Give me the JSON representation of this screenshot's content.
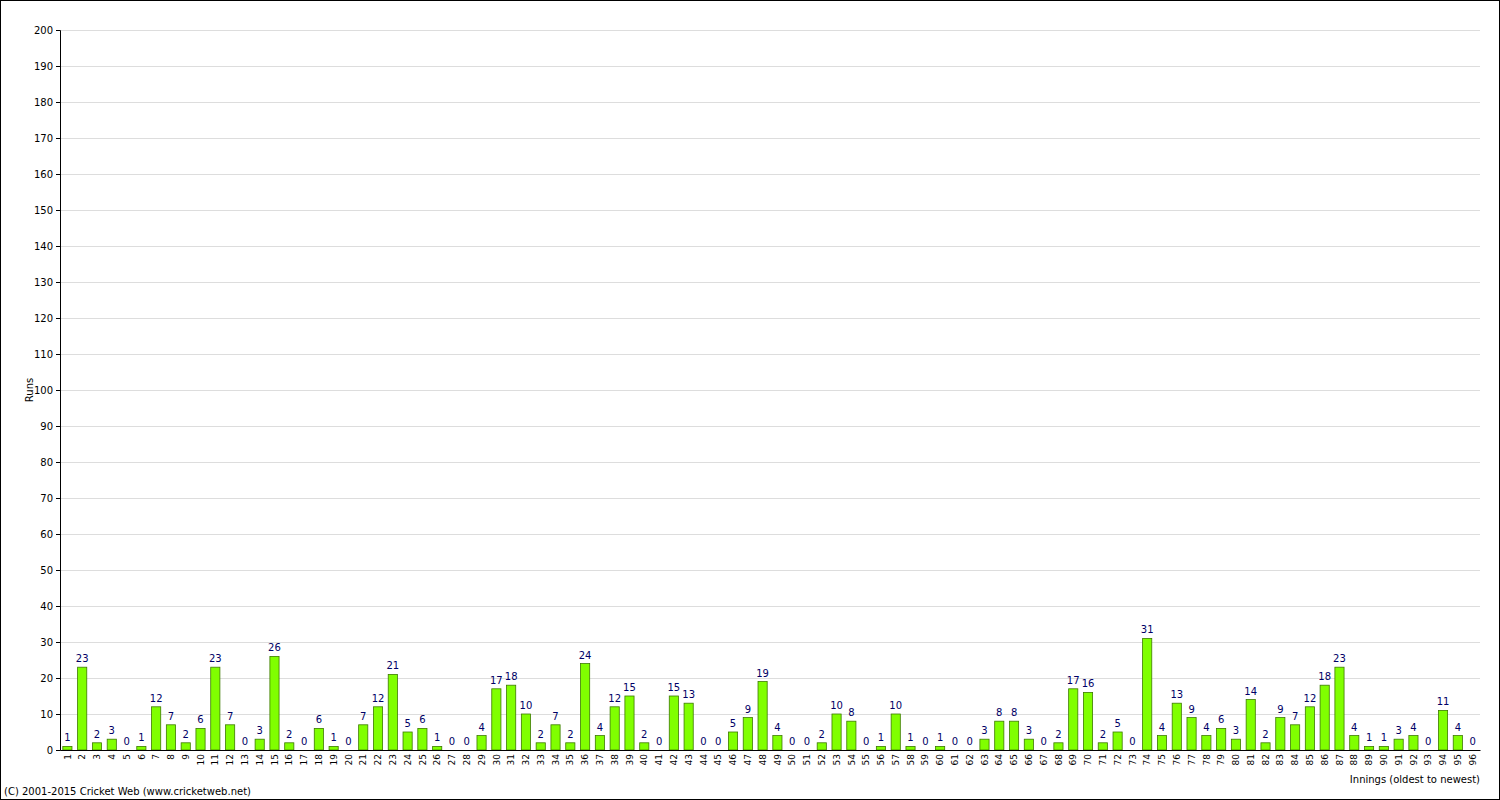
{
  "chart_data": {
    "type": "bar",
    "x_label": "Innings (oldest to newest)",
    "y_label": "Runs",
    "annotations": [
      "(C) 2001-2015 Cricket Web (www.cricketweb.net)"
    ],
    "categories": [
      "1",
      "2",
      "3",
      "4",
      "5",
      "6",
      "7",
      "8",
      "9",
      "10",
      "11",
      "12",
      "13",
      "14",
      "15",
      "16",
      "17",
      "18",
      "19",
      "20",
      "21",
      "22",
      "23",
      "24",
      "25",
      "26",
      "27",
      "28",
      "29",
      "30",
      "31",
      "32",
      "33",
      "34",
      "35",
      "36",
      "37",
      "38",
      "39",
      "40",
      "41",
      "42",
      "43",
      "44",
      "45",
      "46",
      "47",
      "48",
      "49",
      "50",
      "51",
      "52",
      "53",
      "54",
      "55",
      "56",
      "57",
      "58",
      "59",
      "60",
      "61",
      "62",
      "63",
      "64",
      "65",
      "66",
      "67",
      "68",
      "69",
      "70",
      "71",
      "72",
      "73",
      "74",
      "75",
      "76",
      "77",
      "78",
      "79",
      "80",
      "81",
      "82",
      "83",
      "84",
      "85",
      "86",
      "87",
      "88",
      "89",
      "90",
      "91",
      "92",
      "93",
      "94",
      "95",
      "96"
    ],
    "values": [
      1,
      23,
      2,
      3,
      0,
      1,
      12,
      7,
      2,
      6,
      23,
      7,
      0,
      3,
      26,
      2,
      0,
      6,
      1,
      0,
      7,
      12,
      21,
      5,
      6,
      1,
      0,
      0,
      4,
      17,
      18,
      10,
      2,
      7,
      2,
      24,
      4,
      12,
      15,
      2,
      0,
      15,
      13,
      0,
      0,
      5,
      9,
      19,
      4,
      0,
      0,
      2,
      10,
      8,
      0,
      1,
      10,
      1,
      0,
      1,
      0,
      0,
      3,
      8,
      8,
      3,
      0,
      2,
      17,
      16,
      2,
      5,
      0,
      31,
      4,
      13,
      9,
      4,
      6,
      3,
      14,
      2,
      9,
      7,
      12,
      18,
      23,
      4,
      1,
      1,
      3,
      4,
      0,
      11,
      4,
      0
    ],
    "color": "#80ff00",
    "ylim": [
      0,
      200
    ],
    "yticks": [
      0,
      10,
      20,
      30,
      40,
      50,
      60,
      70,
      80,
      90,
      100,
      110,
      120,
      130,
      140,
      150,
      160,
      170,
      180,
      190,
      200
    ],
    "grid": true,
    "data_labels": true
  }
}
